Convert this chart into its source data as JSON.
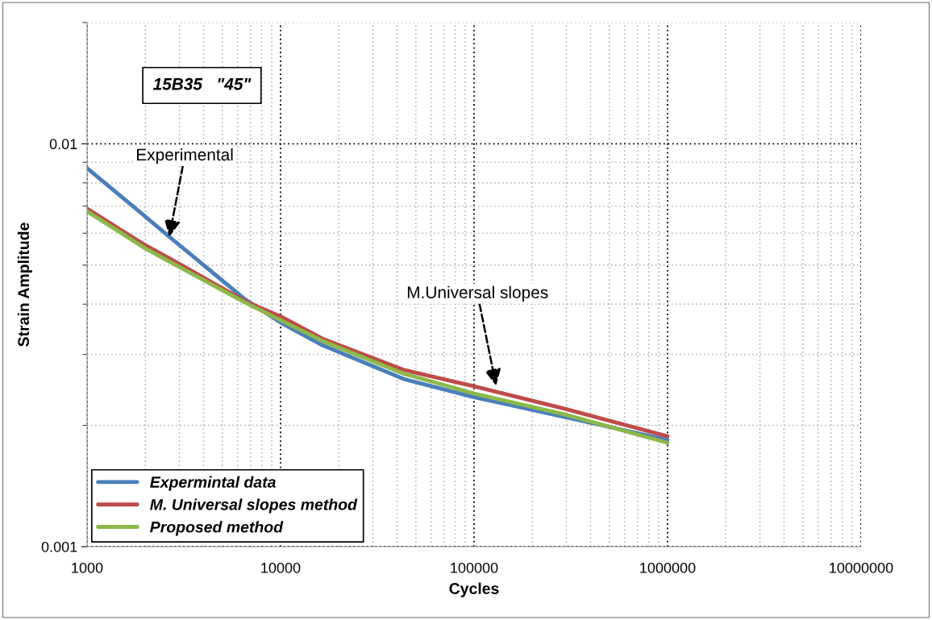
{
  "chart_data": {
    "type": "line",
    "xlabel": "Cycles",
    "ylabel": "Strain Amplitude",
    "log": "xy",
    "grid": true,
    "legend": "bottom left",
    "x": [
      1000,
      2000,
      2660,
      6600,
      10000,
      16500,
      43000,
      100000,
      293000,
      1000000
    ],
    "xlim": [
      1000,
      10000000
    ],
    "xticks": [
      1000,
      10000,
      100000,
      1000000,
      10000000
    ],
    "ylim": [
      0.001,
      0.02
    ],
    "yticks": [
      0.001,
      0.01
    ],
    "series": [
      {
        "name": "Expermintal data",
        "color": "#4a7ebb",
        "values": [
          0.0087,
          0.0066,
          0.00588,
          0.0041,
          0.0036,
          0.00316,
          0.00261,
          0.00235,
          0.0021,
          0.00184
        ]
      },
      {
        "name": "M. Universal slopes method",
        "color": "#be4b48",
        "values": [
          0.0069,
          0.0056,
          0.0052,
          0.00406,
          0.00373,
          0.00328,
          0.00275,
          0.0025,
          0.0022,
          0.00188
        ]
      },
      {
        "name": "Proposed method",
        "color": "#8cb84a",
        "values": [
          0.0068,
          0.0055,
          0.0051,
          0.00403,
          0.00365,
          0.00324,
          0.00269,
          0.0024,
          0.00213,
          0.00181
        ]
      }
    ],
    "annotations": [
      "15B35   \"45\"",
      {
        "text": "Experimental",
        "x": 2660,
        "y": 0.00588
      },
      {
        "text": "M.Universal slopes",
        "x": 130000,
        "y": 0.00251
      }
    ]
  }
}
